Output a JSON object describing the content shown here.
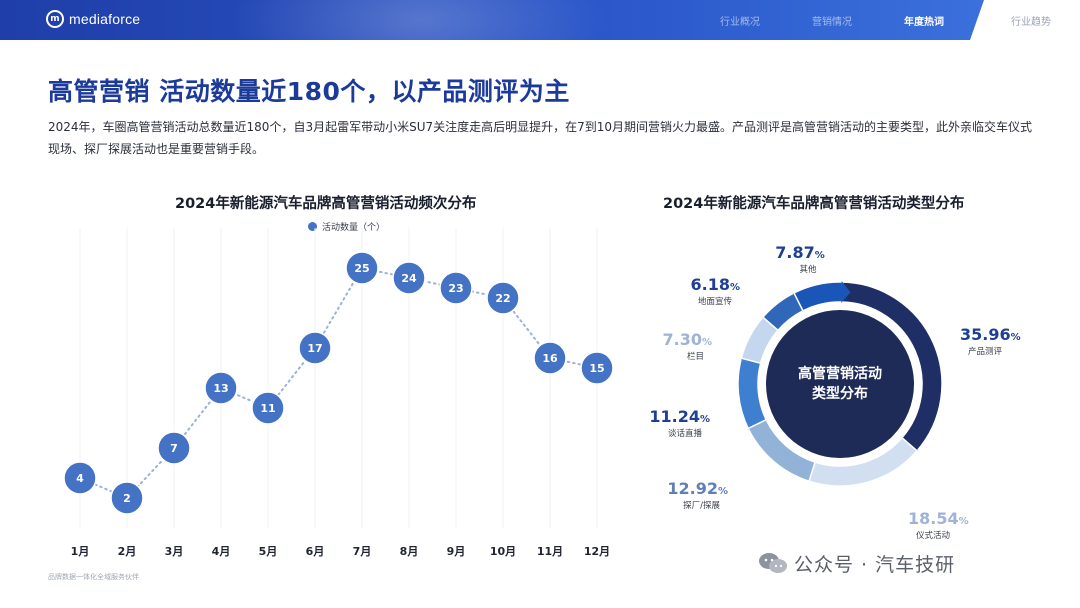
{
  "header": {
    "logo_text": "mediaforce",
    "logo_mark": "m",
    "nav": [
      {
        "label": "行业概况",
        "active": false
      },
      {
        "label": "营销情况",
        "active": false
      },
      {
        "label": "年度热词",
        "active": true
      },
      {
        "label": "行业趋势",
        "active": false
      }
    ]
  },
  "title": "高管营销  活动数量近180个，以产品测评为主",
  "description": "2024年，车圈高管营销活动总数量近180个，自3月起雷军带动小米SU7关注度走高后明显提升，在7到10月期间营销火力最盛。产品测评是高管营销活动的主要类型，此外亲临交车仪式现场、探厂探展活动也是重要营销手段。",
  "footnote": "品牌数据一体化全域服务伙伴",
  "watermark": "公众号 · 汽车技研",
  "chart_data": [
    {
      "type": "line",
      "title": "2024年新能源汽车品牌高管营销活动频次分布",
      "legend": "活动数量（个）",
      "categories": [
        "1月",
        "2月",
        "3月",
        "4月",
        "5月",
        "6月",
        "7月",
        "8月",
        "9月",
        "10月",
        "11月",
        "12月"
      ],
      "series": [
        {
          "name": "活动数量（个）",
          "values": [
            4,
            2,
            7,
            13,
            11,
            17,
            25,
            24,
            23,
            22,
            16,
            15
          ]
        }
      ],
      "ylim": [
        0,
        28
      ],
      "color": "#4472c4",
      "grid": "vertical"
    },
    {
      "type": "pie",
      "title": "2024年新能源汽车品牌高管营销活动类型分布",
      "center_label": [
        "高管营销活动",
        "类型分布"
      ],
      "slices": [
        {
          "label": "产品测评",
          "value": 35.96,
          "display": "35.96",
          "color": "#1f2f66"
        },
        {
          "label": "仪式活动",
          "value": 18.54,
          "display": "18.54",
          "color": "#d2dff0"
        },
        {
          "label": "探厂/探展",
          "value": 12.92,
          "display": "12.92",
          "color": "#93b2d8"
        },
        {
          "label": "谈话直播",
          "value": 11.24,
          "display": "11.24",
          "color": "#3f7fcf"
        },
        {
          "label": "栏目",
          "value": 7.3,
          "display": "7.30",
          "color": "#c5d7ee"
        },
        {
          "label": "地面宣传",
          "value": 6.18,
          "display": "6.18",
          "color": "#2f68b8"
        },
        {
          "label": "其他",
          "value": 7.87,
          "display": "7.87",
          "color": "#1a56b8"
        }
      ],
      "unit": "%"
    }
  ]
}
